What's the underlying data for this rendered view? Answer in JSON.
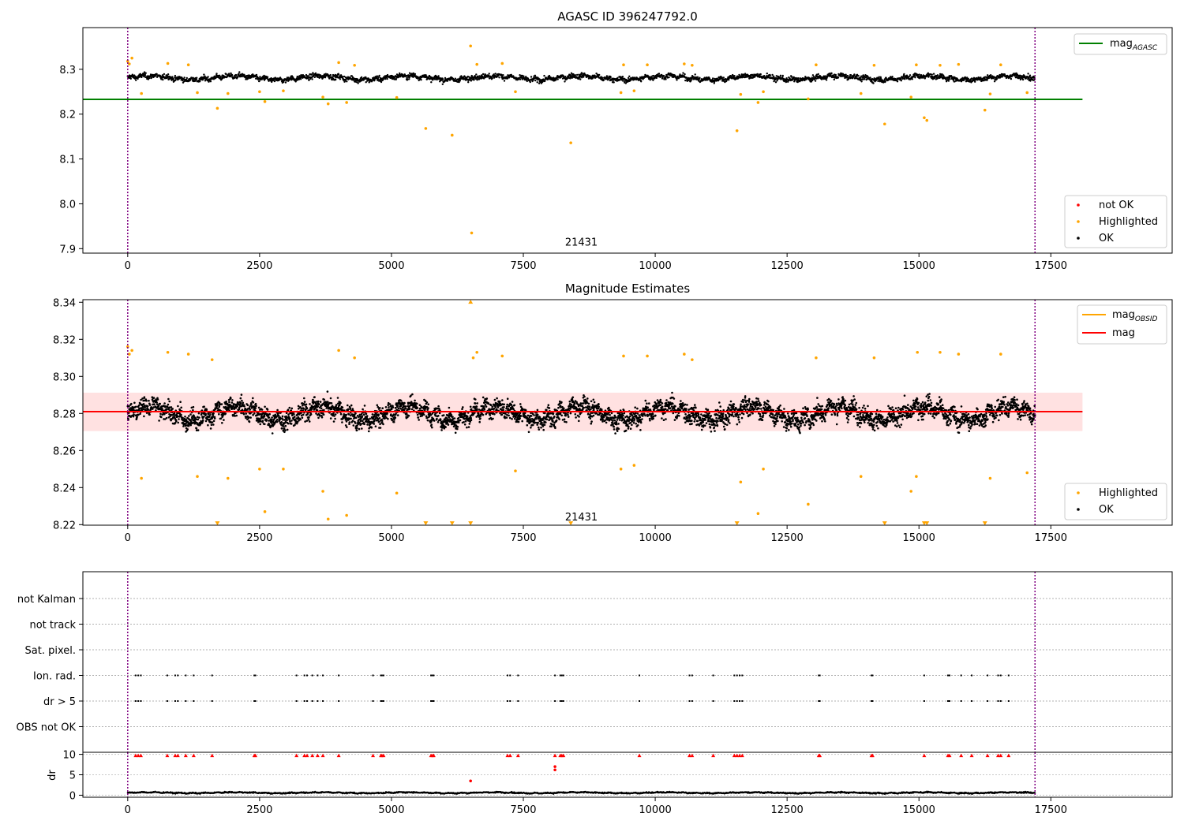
{
  "chart_data": [
    {
      "type": "scatter",
      "title": "AGASC ID 396247792.0",
      "xlim": [
        -850,
        19800
      ],
      "ylim": [
        7.89,
        8.393
      ],
      "x_ticks": [
        0,
        2500,
        5000,
        7500,
        10000,
        12500,
        15000,
        17500
      ],
      "y_ticks": [
        7.9,
        8.0,
        8.1,
        8.2,
        8.3
      ],
      "y_tick_labels": [
        "7.9",
        "8.0",
        "8.1",
        "8.2",
        "8.3"
      ],
      "obs_boundaries": [
        0,
        17200
      ],
      "obsid_label": {
        "text": "21431",
        "x": 8600,
        "y": 7.91
      },
      "reference_lines": [
        {
          "name": "mag",
          "subscript": "AGASC",
          "y": 8.233,
          "x_range": [
            -850,
            18100
          ],
          "color": "#008000"
        }
      ],
      "legend_top": [
        {
          "name": "mag",
          "subscript": "AGASC",
          "kind": "line",
          "color": "#008000"
        }
      ],
      "legend_bottom": [
        {
          "name": "not OK",
          "kind": "dot",
          "color": "#ff0000"
        },
        {
          "name": "Highlighted",
          "kind": "dot",
          "color": "#ffa500"
        },
        {
          "name": "OK",
          "kind": "dot",
          "color": "#000000"
        }
      ],
      "series": [
        {
          "name": "OK",
          "color": "#000000",
          "band": {
            "x_range": [
              0,
              17200
            ],
            "center": 8.281,
            "spread": 0.012
          }
        },
        {
          "name": "Highlighted",
          "color": "#ffa500",
          "points": [
            [
              0,
              8.318
            ],
            [
              30,
              8.312
            ],
            [
              80,
              8.325
            ],
            [
              260,
              8.246
            ],
            [
              760,
              8.313
            ],
            [
              1150,
              8.31
            ],
            [
              1320,
              8.248
            ],
            [
              1700,
              8.213
            ],
            [
              1900,
              8.246
            ],
            [
              2500,
              8.25
            ],
            [
              2600,
              8.228
            ],
            [
              2950,
              8.252
            ],
            [
              3700,
              8.238
            ],
            [
              3800,
              8.223
            ],
            [
              4000,
              8.315
            ],
            [
              4150,
              8.226
            ],
            [
              4300,
              8.309
            ],
            [
              5100,
              8.237
            ],
            [
              5650,
              8.168
            ],
            [
              6150,
              8.153
            ],
            [
              6500,
              8.352
            ],
            [
              6520,
              7.935
            ],
            [
              6620,
              8.311
            ],
            [
              7100,
              8.313
            ],
            [
              7350,
              8.25
            ],
            [
              8400,
              8.136
            ],
            [
              9350,
              8.248
            ],
            [
              9400,
              8.31
            ],
            [
              9600,
              8.252
            ],
            [
              9850,
              8.31
            ],
            [
              10550,
              8.312
            ],
            [
              10700,
              8.309
            ],
            [
              11550,
              8.163
            ],
            [
              11620,
              8.244
            ],
            [
              11950,
              8.226
            ],
            [
              12050,
              8.25
            ],
            [
              12900,
              8.234
            ],
            [
              13050,
              8.31
            ],
            [
              13900,
              8.246
            ],
            [
              14150,
              8.309
            ],
            [
              14350,
              8.178
            ],
            [
              14850,
              8.238
            ],
            [
              14950,
              8.31
            ],
            [
              15100,
              8.192
            ],
            [
              15150,
              8.186
            ],
            [
              15400,
              8.309
            ],
            [
              15750,
              8.311
            ],
            [
              16250,
              8.209
            ],
            [
              16350,
              8.245
            ],
            [
              16550,
              8.31
            ],
            [
              17050,
              8.248
            ]
          ]
        }
      ]
    },
    {
      "type": "scatter",
      "title": "Magnitude Estimates",
      "xlim": [
        -850,
        19800
      ],
      "ylim": [
        8.2197,
        8.3414
      ],
      "x_ticks": [
        0,
        2500,
        5000,
        7500,
        10000,
        12500,
        15000,
        17500
      ],
      "y_ticks": [
        8.22,
        8.24,
        8.26,
        8.28,
        8.3,
        8.32,
        8.34
      ],
      "y_tick_labels": [
        "8.22",
        "8.24",
        "8.26",
        "8.28",
        "8.30",
        "8.32",
        "8.34"
      ],
      "obs_boundaries": [
        0,
        17200
      ],
      "obsid_label": {
        "text": "21431",
        "x": 8600,
        "y": 8.223
      },
      "shaded_band": {
        "x_range": [
          -850,
          18100
        ],
        "y_range": [
          8.2705,
          8.2912
        ],
        "color": "#ffaaaa"
      },
      "reference_lines": [
        {
          "name": "mag",
          "subscript": "OBSID",
          "y": 8.281,
          "x_range": [
            0,
            17200
          ],
          "color": "#ffa500"
        },
        {
          "name": "mag",
          "y": 8.281,
          "x_range": [
            -850,
            18100
          ],
          "color": "#ff0000"
        }
      ],
      "legend_top": [
        {
          "name": "mag",
          "subscript": "OBSID",
          "kind": "line",
          "color": "#ffa500"
        },
        {
          "name": "mag",
          "kind": "line",
          "color": "#ff0000"
        }
      ],
      "legend_bottom": [
        {
          "name": "Highlighted",
          "kind": "dot",
          "color": "#ffa500"
        },
        {
          "name": "OK",
          "kind": "dot",
          "color": "#000000"
        }
      ],
      "series": [
        {
          "name": "OK",
          "color": "#000000",
          "band": {
            "x_range": [
              0,
              17200
            ],
            "center": 8.28,
            "spread": 0.0105
          }
        },
        {
          "name": "Highlighted",
          "color": "#ffa500",
          "points": [
            [
              0,
              8.316
            ],
            [
              30,
              8.312
            ],
            [
              80,
              8.314
            ],
            [
              260,
              8.245
            ],
            [
              760,
              8.313
            ],
            [
              1150,
              8.312
            ],
            [
              1320,
              8.246
            ],
            [
              1600,
              8.309
            ],
            [
              1900,
              8.245
            ],
            [
              2500,
              8.25
            ],
            [
              2600,
              8.227
            ],
            [
              2950,
              8.25
            ],
            [
              3700,
              8.238
            ],
            [
              3800,
              8.223
            ],
            [
              4000,
              8.314
            ],
            [
              4150,
              8.225
            ],
            [
              4300,
              8.31
            ],
            [
              5100,
              8.237
            ],
            [
              6550,
              8.31
            ],
            [
              6620,
              8.313
            ],
            [
              7100,
              8.311
            ],
            [
              7350,
              8.249
            ],
            [
              9350,
              8.25
            ],
            [
              9400,
              8.311
            ],
            [
              9600,
              8.252
            ],
            [
              9850,
              8.311
            ],
            [
              10550,
              8.312
            ],
            [
              10700,
              8.309
            ],
            [
              11620,
              8.243
            ],
            [
              11950,
              8.226
            ],
            [
              12050,
              8.25
            ],
            [
              12900,
              8.231
            ],
            [
              13050,
              8.31
            ],
            [
              13900,
              8.246
            ],
            [
              14150,
              8.31
            ],
            [
              14850,
              8.238
            ],
            [
              14950,
              8.246
            ],
            [
              14970,
              8.313
            ],
            [
              15400,
              8.313
            ],
            [
              15750,
              8.312
            ],
            [
              16350,
              8.245
            ],
            [
              16550,
              8.312
            ],
            [
              17050,
              8.248
            ]
          ]
        },
        {
          "name": "Highlighted (out of range)",
          "marker": "triangle",
          "color": "#ffa500",
          "points": [
            [
              1700,
              8.2205
            ],
            [
              5650,
              8.2205
            ],
            [
              6150,
              8.2205
            ],
            [
              6500,
              8.2205
            ],
            [
              6500,
              8.3405
            ],
            [
              8400,
              8.2205
            ],
            [
              11550,
              8.2205
            ],
            [
              14350,
              8.2205
            ],
            [
              15100,
              8.2205
            ],
            [
              15150,
              8.2205
            ],
            [
              16250,
              8.2205
            ]
          ]
        }
      ]
    },
    {
      "type": "scatter",
      "xlim": [
        -850,
        19800
      ],
      "categories": [
        "not Kalman",
        "not track",
        "Sat. pixel.",
        "Ion. rad.",
        "dr > 5",
        "OBS not OK"
      ],
      "obs_boundaries": [
        0,
        17200
      ],
      "flag_x": [
        150,
        200,
        250,
        750,
        900,
        950,
        1100,
        1250,
        1600,
        2400,
        2420,
        3200,
        3350,
        3400,
        3500,
        3600,
        3700,
        4000,
        4650,
        4800,
        4820,
        4850,
        5750,
        5780,
        5800,
        7200,
        7250,
        7400,
        8100,
        8200,
        8230,
        8260,
        9700,
        10650,
        10700,
        11100,
        11500,
        11550,
        11600,
        11650,
        13100,
        13120,
        14100,
        14120,
        15100,
        15550,
        15580,
        15800,
        16000,
        16300,
        16500,
        16550,
        16700
      ],
      "flag_categories": [
        "Ion. rad.",
        "dr > 5"
      ]
    },
    {
      "type": "scatter",
      "ylabel": "dr",
      "xlim": [
        -850,
        19800
      ],
      "ylim": [
        -0.5,
        10.5
      ],
      "x_ticks": [
        0,
        2500,
        5000,
        7500,
        10000,
        12500,
        15000,
        17500
      ],
      "y_ticks": [
        0,
        5,
        10
      ],
      "y_tick_labels": [
        "0",
        "5",
        "10"
      ],
      "obs_boundaries": [
        0,
        17200
      ],
      "series": [
        {
          "name": "dr",
          "color": "#000000",
          "band": {
            "x_range": [
              0,
              17200
            ],
            "center": 0.6,
            "spread": 0.3
          }
        },
        {
          "name": "dr outliers",
          "color": "#ff0000",
          "points": [
            [
              8100,
              7.0
            ],
            [
              8100,
              6.2
            ]
          ]
        },
        {
          "name": "dr > 5 clipped",
          "marker": "triangle",
          "color": "#ff0000",
          "y": 9.8
        },
        {
          "name": "dr isolated",
          "color": "#ff0000",
          "points": [
            [
              6500,
              3.5
            ]
          ]
        }
      ]
    }
  ]
}
